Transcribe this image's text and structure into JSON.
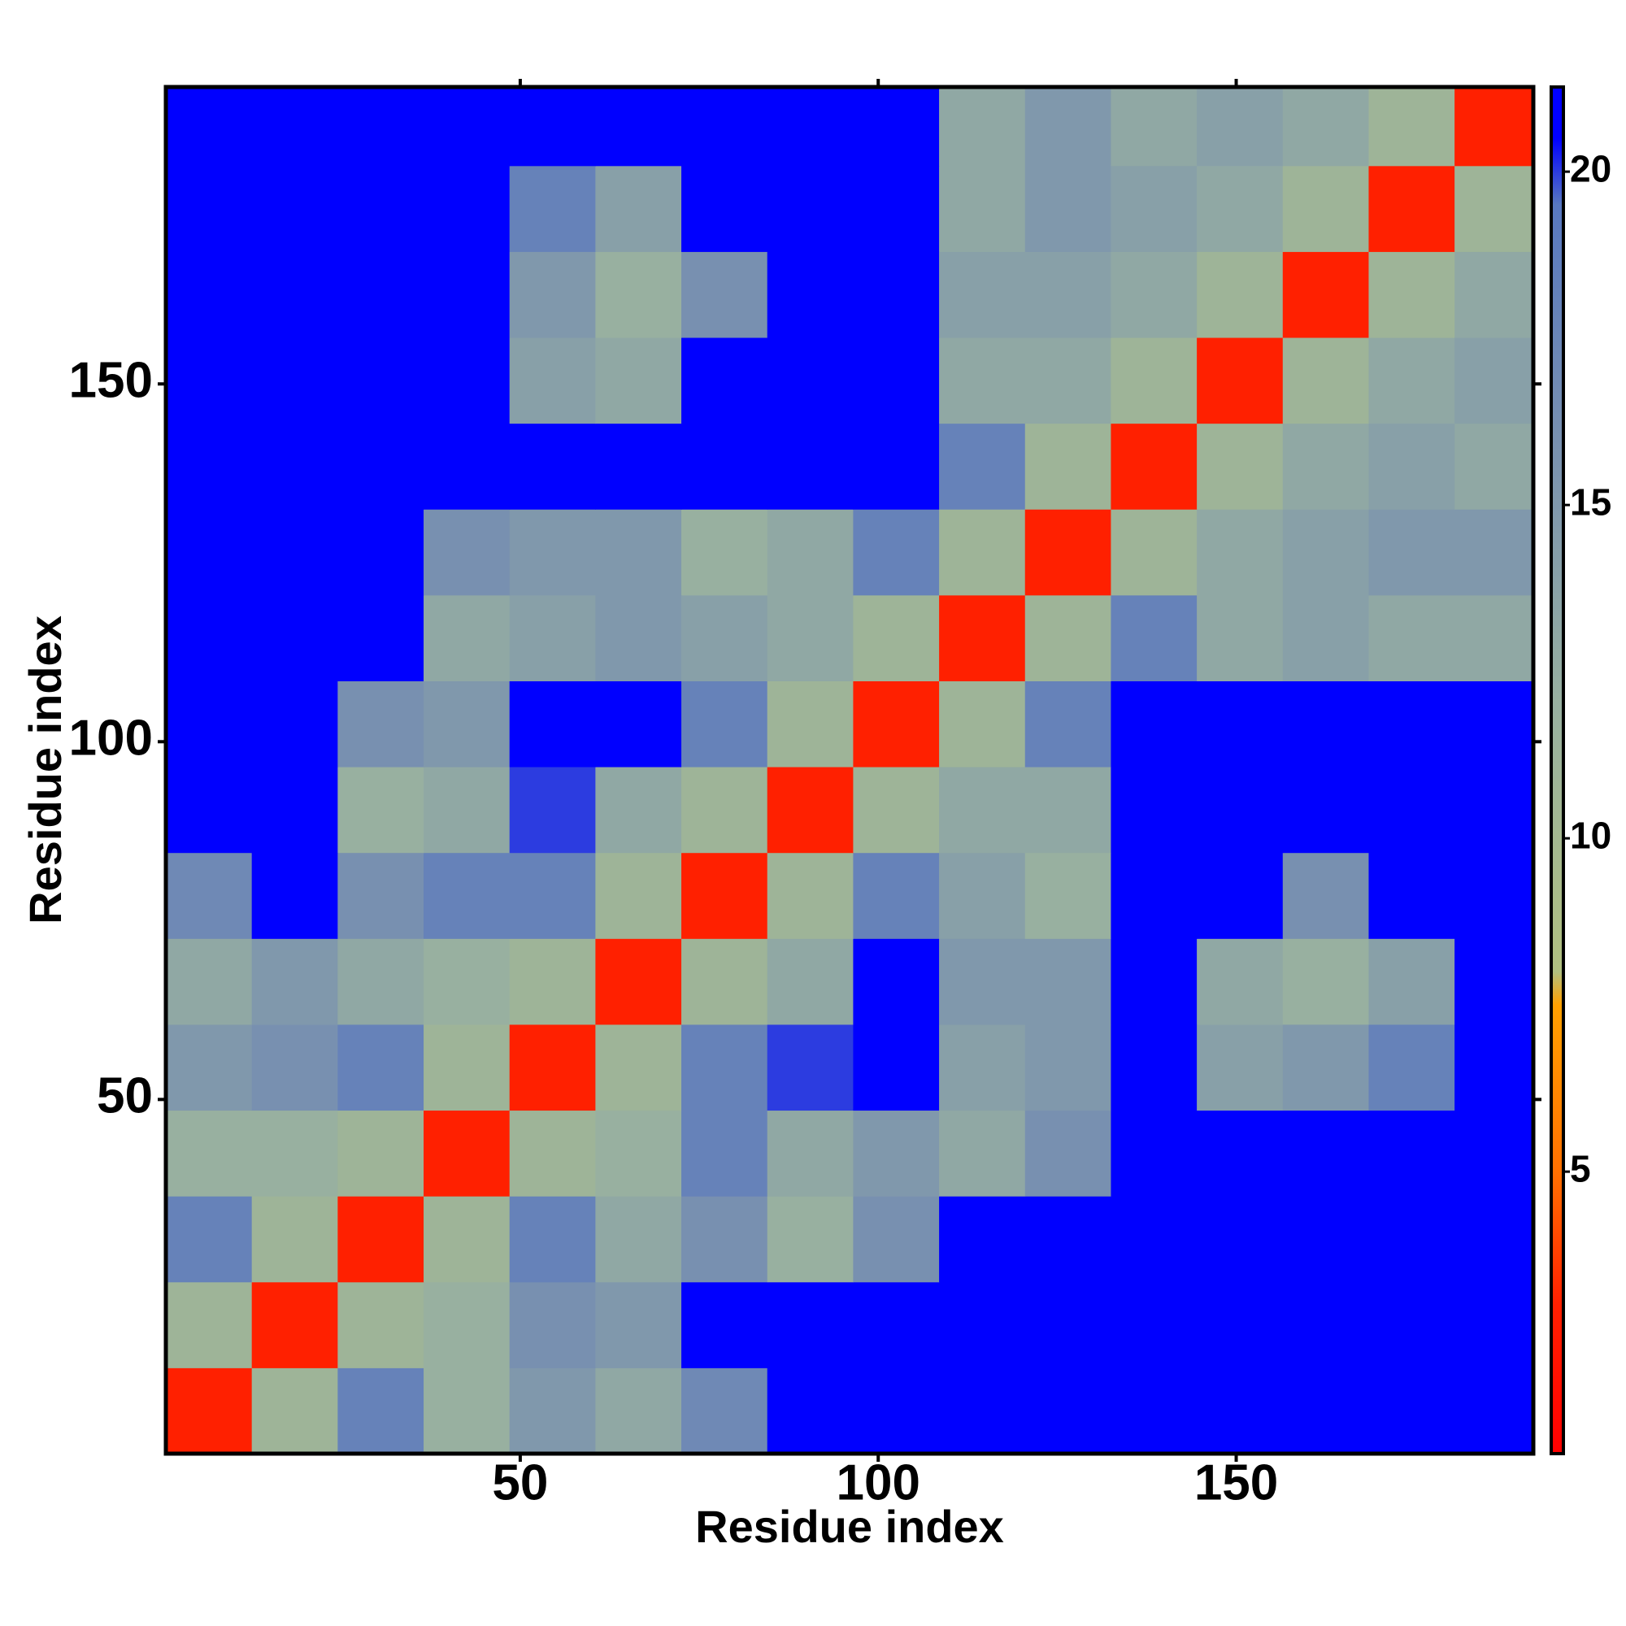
{
  "chart_data": {
    "type": "heatmap",
    "xlabel": "Residue index",
    "ylabel": "Residue index",
    "xlim": [
      0.5,
      191.5
    ],
    "ylim": [
      0.5,
      191.5
    ],
    "xticks": [
      50,
      100,
      150
    ],
    "yticks": [
      50,
      100,
      150
    ],
    "xbins": [
      0.5,
      12.5,
      24.5,
      36.5,
      48.5,
      60.5,
      72.5,
      84.5,
      96.5,
      108.5,
      120.5,
      132.5,
      144.5,
      156.5,
      168.5,
      180.5,
      191.5
    ],
    "ybins": [
      0.5,
      12.5,
      24.5,
      36.5,
      48.5,
      60.5,
      72.5,
      84.5,
      96.5,
      108.5,
      120.5,
      132.5,
      144.5,
      156.5,
      168.5,
      180.5,
      191.5
    ],
    "z": [
      [
        3,
        11,
        18,
        12,
        15,
        13,
        17,
        21,
        21,
        21,
        21,
        21,
        21,
        21,
        21,
        21
      ],
      [
        11,
        3,
        11,
        12,
        16,
        15,
        21,
        21,
        21,
        21,
        21,
        21,
        21,
        21,
        21,
        21
      ],
      [
        18,
        11,
        3,
        11,
        18,
        13,
        16,
        12,
        16,
        21,
        21,
        21,
        21,
        21,
        21,
        21
      ],
      [
        12,
        12,
        11,
        3,
        11,
        12,
        18,
        13,
        15,
        13,
        16,
        21,
        21,
        21,
        21,
        21
      ],
      [
        15,
        16,
        18,
        11,
        3,
        11,
        18,
        20,
        21,
        14,
        15,
        21,
        14,
        15,
        18,
        21
      ],
      [
        13,
        15,
        13,
        12,
        11,
        3,
        11,
        13,
        21,
        15,
        15,
        21,
        13,
        12,
        14,
        21
      ],
      [
        17,
        21,
        16,
        18,
        18,
        11,
        3,
        11,
        18,
        14,
        12,
        21,
        21,
        16,
        21,
        21
      ],
      [
        21,
        21,
        12,
        13,
        20,
        13,
        11,
        3,
        11,
        13,
        13,
        21,
        21,
        21,
        21,
        21
      ],
      [
        21,
        21,
        16,
        15,
        21,
        21,
        18,
        11,
        3,
        11,
        18,
        21,
        21,
        21,
        21,
        21
      ],
      [
        21,
        21,
        21,
        13,
        14,
        15,
        14,
        13,
        11,
        3,
        11,
        18,
        13,
        14,
        13,
        13
      ],
      [
        21,
        21,
        21,
        16,
        15,
        15,
        12,
        13,
        18,
        11,
        3,
        11,
        13,
        14,
        15,
        15
      ],
      [
        21,
        21,
        21,
        21,
        21,
        21,
        21,
        21,
        21,
        18,
        11,
        3,
        11,
        13,
        14,
        13
      ],
      [
        21,
        21,
        21,
        21,
        14,
        13,
        21,
        21,
        21,
        13,
        13,
        11,
        3,
        11,
        13,
        14
      ],
      [
        21,
        21,
        21,
        21,
        15,
        12,
        16,
        21,
        21,
        14,
        14,
        13,
        11,
        3,
        11,
        13
      ],
      [
        21,
        21,
        21,
        21,
        18,
        14,
        21,
        21,
        21,
        13,
        15,
        14,
        13,
        11,
        3,
        11
      ],
      [
        21,
        21,
        21,
        21,
        21,
        21,
        21,
        21,
        21,
        13,
        15,
        13,
        14,
        13,
        11,
        3
      ]
    ],
    "clim": [
      0.77,
      21.27
    ],
    "cticks": [
      5,
      10,
      15,
      20
    ],
    "colorscale": [
      {
        "value": 0.77,
        "color": "#ff0000"
      },
      {
        "value": 3,
        "color": "#ff2000"
      },
      {
        "value": 5,
        "color": "#ff7000"
      },
      {
        "value": 7.5,
        "color": "#ffa000"
      },
      {
        "value": 8,
        "color": "#b0c080"
      },
      {
        "value": 12,
        "color": "#98b0a0"
      },
      {
        "value": 16,
        "color": "#7890b0"
      },
      {
        "value": 19.5,
        "color": "#5878c0"
      },
      {
        "value": 20.5,
        "color": "#0000ff"
      },
      {
        "value": 21.27,
        "color": "#0000ff"
      }
    ]
  }
}
